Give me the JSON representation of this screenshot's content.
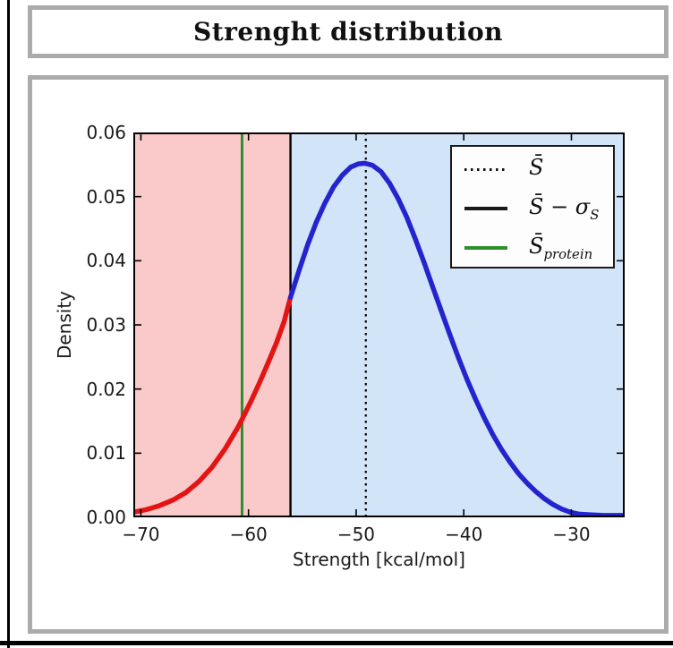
{
  "page": {
    "title": "Strenght distribution"
  },
  "chart_data": {
    "type": "line",
    "title": "Strenght distribution",
    "xlabel": "Strength [kcal/mol]",
    "ylabel": "Density",
    "xlim": [
      -70.7,
      -25.05
    ],
    "ylim": [
      0,
      0.06
    ],
    "xticks": [
      -70,
      -60,
      -50,
      -40,
      -30
    ],
    "xtick_labels": [
      "−70",
      "−60",
      "−50",
      "−40",
      "−30"
    ],
    "yticks": [
      0,
      0.01,
      0.02,
      0.03,
      0.04,
      0.05,
      0.06
    ],
    "ytick_labels": [
      "0.00",
      "0.01",
      "0.02",
      "0.03",
      "0.04",
      "0.05",
      "0.06"
    ],
    "grid": false,
    "legend_position": "upper right",
    "regions": [
      {
        "name": "below-threshold",
        "from": -70.7,
        "to": -56.1,
        "color": "#fac9c9"
      },
      {
        "name": "above-threshold",
        "from": -56.1,
        "to": -25.05,
        "color": "#d2e5f8"
      }
    ],
    "vlines": [
      {
        "name": "mean",
        "x": -49.1,
        "style": "dotted",
        "color": "#000000",
        "width": 2.2
      },
      {
        "name": "mean-minus-sigma",
        "x": -56.1,
        "style": "solid",
        "color": "#000000",
        "width": 2.4
      },
      {
        "name": "protein",
        "x": -60.6,
        "style": "solid",
        "color": "#2e8f2e",
        "width": 3
      }
    ],
    "series": [
      {
        "name": "density-below-threshold",
        "color": "#e41414",
        "points": [
          [
            -70.7,
            0.0008
          ],
          [
            -69.5,
            0.0012
          ],
          [
            -68.3,
            0.0018
          ],
          [
            -67,
            0.0027
          ],
          [
            -65.8,
            0.0039
          ],
          [
            -64.6,
            0.0056
          ],
          [
            -63.4,
            0.0078
          ],
          [
            -62.2,
            0.0106
          ],
          [
            -61,
            0.014
          ],
          [
            -60.6,
            0.0153
          ],
          [
            -59.8,
            0.018
          ],
          [
            -59,
            0.0209
          ],
          [
            -58.2,
            0.024
          ],
          [
            -57.4,
            0.0272
          ],
          [
            -56.7,
            0.0305
          ],
          [
            -56.1,
            0.0343
          ]
        ]
      },
      {
        "name": "density-above-threshold",
        "color": "#2424cf",
        "points": [
          [
            -56.1,
            0.0343
          ],
          [
            -55.3,
            0.0385
          ],
          [
            -54.5,
            0.0425
          ],
          [
            -53.7,
            0.046
          ],
          [
            -52.9,
            0.049
          ],
          [
            -52.1,
            0.0515
          ],
          [
            -51.3,
            0.0533
          ],
          [
            -50.5,
            0.0546
          ],
          [
            -49.8,
            0.0551
          ],
          [
            -49.2,
            0.0552
          ],
          [
            -48.5,
            0.0549
          ],
          [
            -47.7,
            0.0539
          ],
          [
            -46.9,
            0.0521
          ],
          [
            -46.1,
            0.0497
          ],
          [
            -45.3,
            0.0468
          ],
          [
            -44.5,
            0.0434
          ],
          [
            -43.7,
            0.0398
          ],
          [
            -42.9,
            0.036
          ],
          [
            -42.1,
            0.0322
          ],
          [
            -41.3,
            0.0285
          ],
          [
            -40.5,
            0.0249
          ],
          [
            -39.7,
            0.0215
          ],
          [
            -38.9,
            0.0184
          ],
          [
            -38.1,
            0.0155
          ],
          [
            -37.3,
            0.0129
          ],
          [
            -36.5,
            0.0106
          ],
          [
            -35.7,
            0.0086
          ],
          [
            -34.9,
            0.0068
          ],
          [
            -34.1,
            0.0053
          ],
          [
            -33.3,
            0.004
          ],
          [
            -32.5,
            0.0029
          ],
          [
            -31.7,
            0.002
          ],
          [
            -30.9,
            0.0013
          ],
          [
            -30.1,
            0.0008
          ],
          [
            -29.3,
            0.0005
          ],
          [
            -28.3,
            0.0004
          ],
          [
            -27,
            0.0003
          ],
          [
            -25.05,
            0.0003
          ]
        ]
      }
    ]
  },
  "legend": {
    "items": [
      {
        "name": "mean",
        "label_main": "S̄",
        "label_sub": ""
      },
      {
        "name": "mean-minus-sigma",
        "label_main": "S̄ − σ",
        "label_sub": "S"
      },
      {
        "name": "protein",
        "label_main": "S̄",
        "label_sub": "protein"
      }
    ]
  },
  "colors": {
    "frame_border": "#ababab",
    "axis": "#000000",
    "region_below": "#fac9c9",
    "region_above": "#d2e5f8",
    "curve_below": "#e41414",
    "curve_above": "#2424cf",
    "protein_line": "#2e8f2e"
  }
}
